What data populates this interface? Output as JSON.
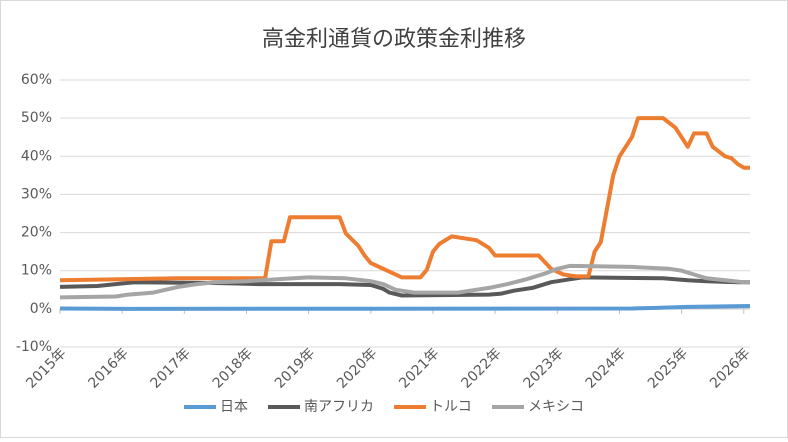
{
  "chart_data": {
    "type": "line",
    "title": "高金利通貨の政策金利推移",
    "xlim": [
      2015,
      2026.1
    ],
    "ylim": [
      -10,
      60
    ],
    "yticks": [
      {
        "value": -10,
        "label": "-10%"
      },
      {
        "value": 0,
        "label": "0%"
      },
      {
        "value": 10,
        "label": "10%"
      },
      {
        "value": 20,
        "label": "20%"
      },
      {
        "value": 30,
        "label": "30%"
      },
      {
        "value": 40,
        "label": "40%"
      },
      {
        "value": 50,
        "label": "50%"
      },
      {
        "value": 60,
        "label": "60%"
      }
    ],
    "xticks": [
      {
        "value": 2015,
        "label": "2015年"
      },
      {
        "value": 2016,
        "label": "2016年"
      },
      {
        "value": 2017,
        "label": "2017年"
      },
      {
        "value": 2018,
        "label": "2018年"
      },
      {
        "value": 2019,
        "label": "2019年"
      },
      {
        "value": 2020,
        "label": "2020年"
      },
      {
        "value": 2021,
        "label": "2021年"
      },
      {
        "value": 2022,
        "label": "2022年"
      },
      {
        "value": 2023,
        "label": "2023年"
      },
      {
        "value": 2024,
        "label": "2024年"
      },
      {
        "value": 2025,
        "label": "2025年"
      },
      {
        "value": 2026,
        "label": "2026年"
      }
    ],
    "grid": true,
    "legend": "bottom",
    "series": [
      {
        "name": "日本",
        "color": "#5b9bd5",
        "x": [
          2015,
          2016.1,
          2024.2,
          2024.6,
          2025.1,
          2026.1
        ],
        "values": [
          0.1,
          0,
          0.1,
          0.25,
          0.5,
          0.75
        ]
      },
      {
        "name": "南アフリカ",
        "color": "#595959",
        "x": [
          2015,
          2015.6,
          2016.2,
          2017.6,
          2018.2,
          2019.5,
          2020.0,
          2020.2,
          2020.3,
          2020.5,
          2021.9,
          2022.1,
          2022.3,
          2022.6,
          2022.9,
          2023.2,
          2023.4,
          2024.7,
          2024.9,
          2025.1,
          2025.4,
          2025.9,
          2026.1
        ],
        "values": [
          5.75,
          6,
          7,
          6.75,
          6.5,
          6.5,
          6.25,
          5.25,
          4.25,
          3.5,
          3.75,
          4,
          4.75,
          5.5,
          7,
          7.75,
          8.25,
          8.0,
          7.75,
          7.5,
          7.25,
          7.0,
          7.0
        ]
      },
      {
        "name": "トルコ",
        "color": "#ed7d31",
        "x": [
          2015,
          2016.9,
          2018.3,
          2018.4,
          2018.6,
          2018.7,
          2019.5,
          2019.6,
          2019.8,
          2019.9,
          2020.0,
          2020.3,
          2020.5,
          2020.8,
          2020.9,
          2021.0,
          2021.1,
          2021.3,
          2021.7,
          2021.9,
          2022.0,
          2022.7,
          2022.9,
          2023.1,
          2023.3,
          2023.5,
          2023.6,
          2023.7,
          2023.9,
          2024.0,
          2024.1,
          2024.2,
          2024.3,
          2024.7,
          2024.9,
          2025.0,
          2025.1,
          2025.2,
          2025.4,
          2025.5,
          2025.7,
          2025.8,
          2025.9,
          2026.0,
          2026.1
        ],
        "values": [
          7.5,
          8,
          8,
          17.75,
          17.75,
          24,
          24,
          19.75,
          16.5,
          14,
          12,
          9.75,
          8.25,
          8.25,
          10.25,
          15,
          17,
          19,
          18,
          16,
          14,
          14,
          10.5,
          9,
          8.5,
          8.5,
          15,
          17.5,
          35,
          40,
          42.5,
          45,
          50,
          50,
          47.5,
          45,
          42.5,
          46,
          46,
          42.5,
          40,
          39.5,
          38,
          37,
          37
        ]
      },
      {
        "name": "メキシコ",
        "color": "#a5a5a5",
        "x": [
          2015,
          2015.9,
          2016.1,
          2016.5,
          2016.9,
          2017.2,
          2017.5,
          2018.0,
          2018.5,
          2019.0,
          2019.6,
          2020.0,
          2020.2,
          2020.4,
          2020.7,
          2021.4,
          2021.6,
          2021.9,
          2022.2,
          2022.5,
          2022.8,
          2023.0,
          2023.2,
          2024.2,
          2024.5,
          2024.8,
          2025.0,
          2025.2,
          2025.4,
          2025.7,
          2026.0,
          2026.1
        ],
        "values": [
          3,
          3.25,
          3.75,
          4.25,
          5.75,
          6.5,
          7,
          7.25,
          7.75,
          8.25,
          8,
          7.25,
          6.5,
          5,
          4.25,
          4.25,
          4.75,
          5.5,
          6.5,
          7.75,
          9.25,
          10.5,
          11.25,
          11,
          10.75,
          10.5,
          10,
          9,
          8,
          7.5,
          7,
          7
        ]
      }
    ]
  }
}
